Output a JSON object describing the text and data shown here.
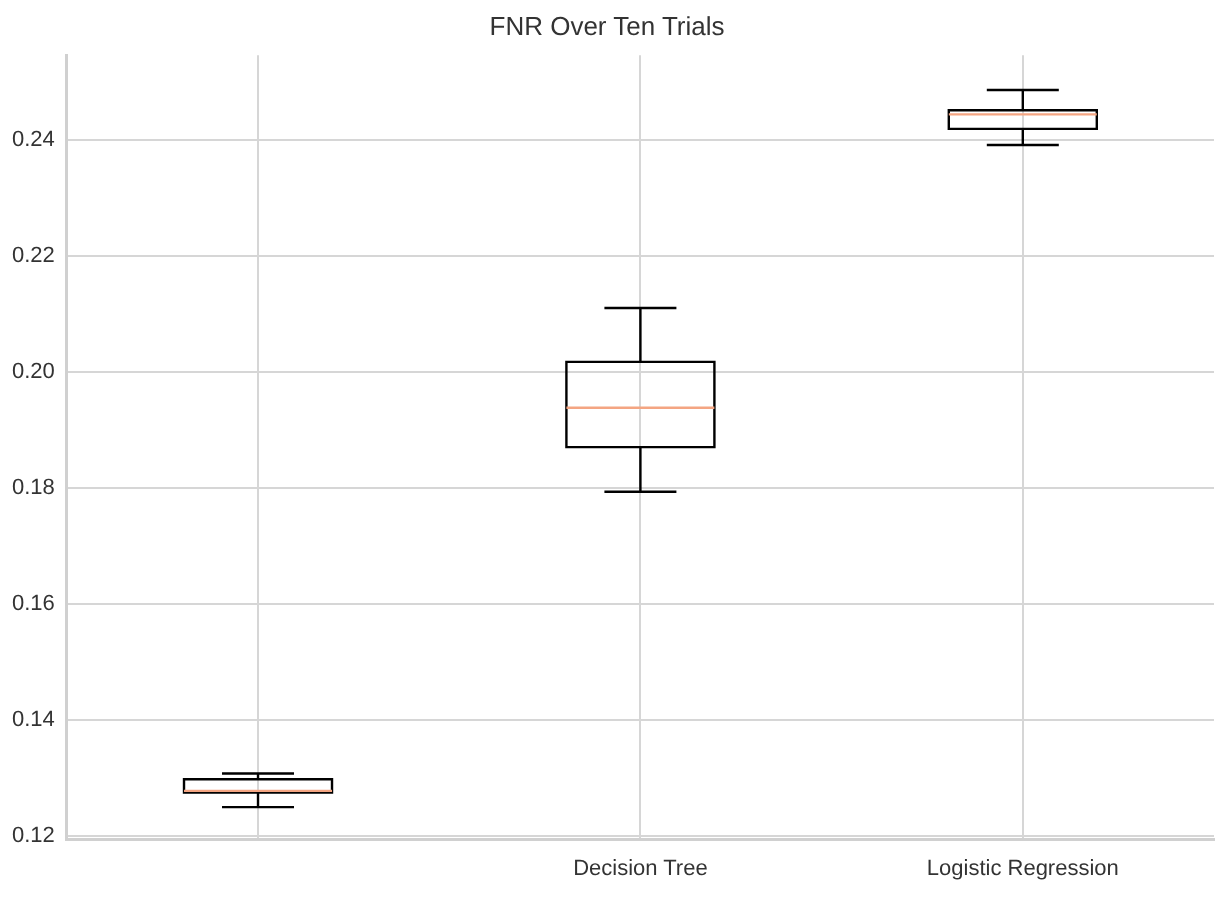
{
  "chart_data": {
    "type": "box",
    "title": "FNR Over Ten Trials",
    "categories": [
      null,
      "Decision Tree",
      "Logistic Regression"
    ],
    "boxes": [
      {
        "low": 0.1249,
        "q1": 0.1274,
        "median": 0.1277,
        "q3": 0.1297,
        "high": 0.1307
      },
      {
        "low": 0.1793,
        "q1": 0.187,
        "median": 0.1938,
        "q3": 0.2017,
        "high": 0.211
      },
      {
        "low": 0.2391,
        "q1": 0.2419,
        "median": 0.2444,
        "q3": 0.2451,
        "high": 0.2486
      }
    ],
    "ylim": [
      0.1193,
      0.2546
    ],
    "yticks": [
      {
        "value": 0.12,
        "label": "0.12"
      },
      {
        "value": 0.14,
        "label": "0.14"
      },
      {
        "value": 0.16,
        "label": "0.16"
      },
      {
        "value": 0.18,
        "label": "0.18"
      },
      {
        "value": 0.2,
        "label": "0.20"
      },
      {
        "value": 0.22,
        "label": "0.22"
      },
      {
        "value": 0.24,
        "label": "0.24"
      }
    ],
    "grid": true,
    "legend": false
  }
}
